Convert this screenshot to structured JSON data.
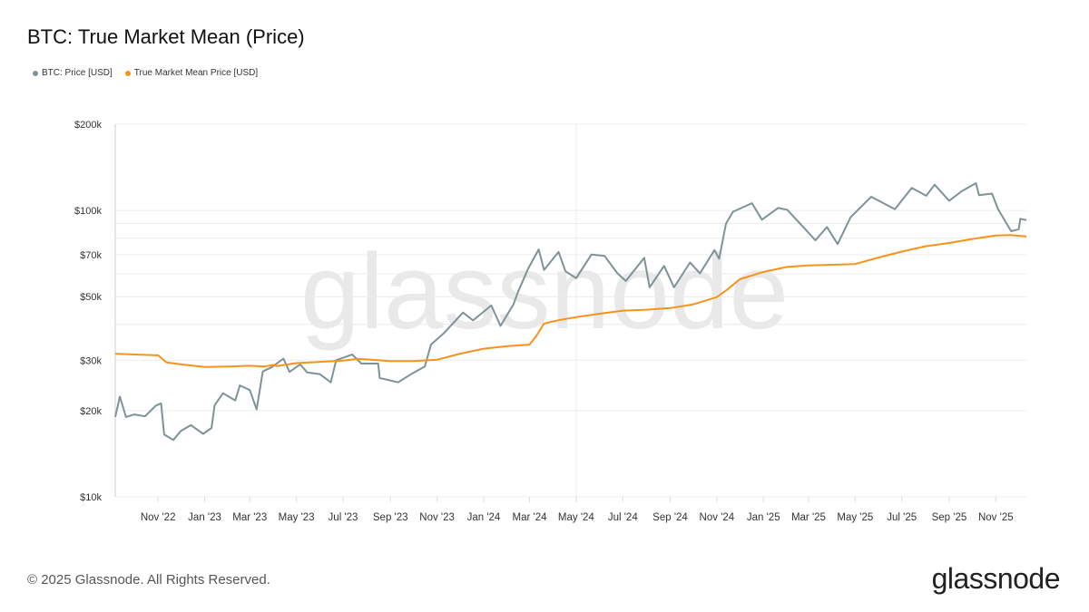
{
  "footer": {
    "copyright": "© 2025 Glassnode. All Rights Reserved.",
    "logo_text": "glassnode"
  },
  "watermark": "glassnode",
  "chart_data": {
    "type": "line",
    "title": "BTC: True Market Mean (Price)",
    "xlabel": "",
    "ylabel": "",
    "yscale": "log",
    "ylim": [
      10000,
      200000
    ],
    "xlim": [
      "2022-09-06",
      "2025-12-11"
    ],
    "grid": true,
    "legend_position": "top-left",
    "y_gridlines": [
      10000,
      20000,
      30000,
      40000,
      50000,
      60000,
      70000,
      80000,
      90000,
      100000,
      200000
    ],
    "y_ticks": [
      {
        "value": 200000,
        "label": "$200k"
      },
      {
        "value": 100000,
        "label": "$100k"
      },
      {
        "value": 70000,
        "label": "$70k"
      },
      {
        "value": 50000,
        "label": "$50k"
      },
      {
        "value": 30000,
        "label": "$30k"
      },
      {
        "value": 20000,
        "label": "$20k"
      },
      {
        "value": 10000,
        "label": "$10k"
      }
    ],
    "x_ticks": [
      {
        "date": "2022-11-01",
        "label": "Nov '22"
      },
      {
        "date": "2023-01-01",
        "label": "Jan '23"
      },
      {
        "date": "2023-03-01",
        "label": "Mar '23"
      },
      {
        "date": "2023-05-01",
        "label": "May '23"
      },
      {
        "date": "2023-07-01",
        "label": "Jul '23"
      },
      {
        "date": "2023-09-01",
        "label": "Sep '23"
      },
      {
        "date": "2023-11-01",
        "label": "Nov '23"
      },
      {
        "date": "2024-01-01",
        "label": "Jan '24"
      },
      {
        "date": "2024-03-01",
        "label": "Mar '24"
      },
      {
        "date": "2024-05-01",
        "label": "May '24"
      },
      {
        "date": "2024-07-01",
        "label": "Jul '24"
      },
      {
        "date": "2024-09-01",
        "label": "Sep '24"
      },
      {
        "date": "2024-11-01",
        "label": "Nov '24"
      },
      {
        "date": "2025-01-01",
        "label": "Jan '25"
      },
      {
        "date": "2025-03-01",
        "label": "Mar '25"
      },
      {
        "date": "2025-05-01",
        "label": "May '25"
      },
      {
        "date": "2025-07-01",
        "label": "Jul '25"
      },
      {
        "date": "2025-09-01",
        "label": "Sep '25"
      },
      {
        "date": "2025-11-01",
        "label": "Nov '25"
      }
    ],
    "series": [
      {
        "name": "BTC: Price [USD]",
        "color": "#7f9296",
        "points": [
          [
            "2022-09-06",
            19000
          ],
          [
            "2022-09-12",
            22400
          ],
          [
            "2022-09-20",
            19000
          ],
          [
            "2022-10-01",
            19400
          ],
          [
            "2022-10-15",
            19100
          ],
          [
            "2022-10-29",
            20800
          ],
          [
            "2022-11-05",
            21200
          ],
          [
            "2022-11-09",
            16500
          ],
          [
            "2022-11-21",
            15800
          ],
          [
            "2022-12-01",
            17000
          ],
          [
            "2022-12-14",
            17800
          ],
          [
            "2022-12-30",
            16600
          ],
          [
            "2023-01-10",
            17400
          ],
          [
            "2023-01-14",
            20900
          ],
          [
            "2023-01-25",
            23000
          ],
          [
            "2023-02-10",
            21700
          ],
          [
            "2023-02-16",
            24500
          ],
          [
            "2023-03-01",
            23600
          ],
          [
            "2023-03-10",
            20200
          ],
          [
            "2023-03-18",
            27400
          ],
          [
            "2023-03-30",
            28400
          ],
          [
            "2023-04-14",
            30400
          ],
          [
            "2023-04-22",
            27300
          ],
          [
            "2023-05-06",
            29000
          ],
          [
            "2023-05-15",
            27200
          ],
          [
            "2023-06-01",
            26800
          ],
          [
            "2023-06-15",
            25100
          ],
          [
            "2023-06-22",
            30000
          ],
          [
            "2023-07-13",
            31400
          ],
          [
            "2023-07-25",
            29200
          ],
          [
            "2023-08-16",
            29200
          ],
          [
            "2023-08-18",
            26000
          ],
          [
            "2023-09-11",
            25100
          ],
          [
            "2023-09-30",
            27000
          ],
          [
            "2023-10-16",
            28500
          ],
          [
            "2023-10-24",
            34000
          ],
          [
            "2023-11-10",
            37300
          ],
          [
            "2023-12-05",
            44000
          ],
          [
            "2023-12-18",
            41300
          ],
          [
            "2024-01-11",
            46600
          ],
          [
            "2024-01-23",
            39500
          ],
          [
            "2024-02-09",
            47000
          ],
          [
            "2024-02-15",
            52000
          ],
          [
            "2024-02-28",
            62500
          ],
          [
            "2024-03-13",
            73100
          ],
          [
            "2024-03-20",
            62000
          ],
          [
            "2024-04-08",
            71600
          ],
          [
            "2024-04-17",
            61300
          ],
          [
            "2024-05-01",
            58000
          ],
          [
            "2024-05-21",
            70100
          ],
          [
            "2024-06-07",
            69400
          ],
          [
            "2024-06-24",
            60300
          ],
          [
            "2024-07-05",
            56700
          ],
          [
            "2024-07-29",
            68300
          ],
          [
            "2024-08-05",
            53900
          ],
          [
            "2024-08-24",
            64000
          ],
          [
            "2024-09-06",
            53900
          ],
          [
            "2024-09-27",
            65800
          ],
          [
            "2024-10-10",
            60300
          ],
          [
            "2024-10-29",
            72700
          ],
          [
            "2024-11-04",
            67800
          ],
          [
            "2024-11-13",
            90000
          ],
          [
            "2024-11-22",
            98900
          ],
          [
            "2024-12-17",
            106000
          ],
          [
            "2024-12-30",
            92800
          ],
          [
            "2025-01-20",
            102000
          ],
          [
            "2025-02-01",
            100600
          ],
          [
            "2025-02-27",
            84700
          ],
          [
            "2025-03-10",
            78600
          ],
          [
            "2025-03-25",
            87500
          ],
          [
            "2025-04-08",
            76300
          ],
          [
            "2025-04-25",
            94700
          ],
          [
            "2025-05-22",
            111600
          ],
          [
            "2025-06-22",
            101000
          ],
          [
            "2025-07-14",
            119800
          ],
          [
            "2025-08-02",
            112500
          ],
          [
            "2025-08-13",
            123000
          ],
          [
            "2025-09-01",
            108000
          ],
          [
            "2025-09-18",
            117000
          ],
          [
            "2025-10-06",
            124500
          ],
          [
            "2025-10-10",
            113000
          ],
          [
            "2025-10-27",
            114500
          ],
          [
            "2025-11-04",
            101000
          ],
          [
            "2025-11-21",
            84600
          ],
          [
            "2025-12-01",
            86000
          ],
          [
            "2025-12-03",
            93500
          ],
          [
            "2025-12-11",
            92500
          ]
        ]
      },
      {
        "name": "True Market Mean Price [USD]",
        "color": "#f7931a",
        "points": [
          [
            "2022-09-06",
            31600
          ],
          [
            "2022-10-01",
            31400
          ],
          [
            "2022-11-01",
            31200
          ],
          [
            "2022-11-12",
            29500
          ],
          [
            "2022-12-01",
            29000
          ],
          [
            "2023-01-01",
            28400
          ],
          [
            "2023-02-01",
            28500
          ],
          [
            "2023-03-01",
            28700
          ],
          [
            "2023-03-20",
            28500
          ],
          [
            "2023-04-01",
            28900
          ],
          [
            "2023-04-05",
            28600
          ],
          [
            "2023-05-01",
            29300
          ],
          [
            "2023-06-01",
            29600
          ],
          [
            "2023-07-01",
            29900
          ],
          [
            "2023-07-20",
            30300
          ],
          [
            "2023-08-01",
            30200
          ],
          [
            "2023-09-01",
            29800
          ],
          [
            "2023-10-01",
            29800
          ],
          [
            "2023-11-01",
            30100
          ],
          [
            "2023-12-01",
            31600
          ],
          [
            "2024-01-01",
            32900
          ],
          [
            "2024-02-01",
            33600
          ],
          [
            "2024-03-01",
            34000
          ],
          [
            "2024-03-10",
            36500
          ],
          [
            "2024-03-20",
            40300
          ],
          [
            "2024-04-10",
            41500
          ],
          [
            "2024-05-01",
            42400
          ],
          [
            "2024-06-01",
            43600
          ],
          [
            "2024-07-01",
            44700
          ],
          [
            "2024-08-01",
            45000
          ],
          [
            "2024-09-01",
            45600
          ],
          [
            "2024-10-01",
            47000
          ],
          [
            "2024-11-01",
            49800
          ],
          [
            "2024-11-15",
            53000
          ],
          [
            "2024-12-01",
            57500
          ],
          [
            "2025-01-01",
            61000
          ],
          [
            "2025-02-01",
            63500
          ],
          [
            "2025-03-01",
            64300
          ],
          [
            "2025-04-01",
            64600
          ],
          [
            "2025-05-01",
            65000
          ],
          [
            "2025-06-01",
            68500
          ],
          [
            "2025-07-01",
            71800
          ],
          [
            "2025-08-01",
            75000
          ],
          [
            "2025-09-01",
            77000
          ],
          [
            "2025-10-01",
            79500
          ],
          [
            "2025-11-01",
            81800
          ],
          [
            "2025-11-20",
            82000
          ],
          [
            "2025-12-11",
            81200
          ]
        ]
      }
    ]
  }
}
